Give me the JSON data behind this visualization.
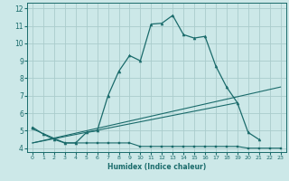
{
  "title": "",
  "xlabel": "Humidex (Indice chaleur)",
  "bg_color": "#cce8e8",
  "grid_color": "#aacccc",
  "line_color": "#1a6b6b",
  "xlim": [
    -0.5,
    23.5
  ],
  "ylim": [
    3.8,
    12.3
  ],
  "yticks": [
    4,
    5,
    6,
    7,
    8,
    9,
    10,
    11,
    12
  ],
  "xticks": [
    0,
    1,
    2,
    3,
    4,
    5,
    6,
    7,
    8,
    9,
    10,
    11,
    12,
    13,
    14,
    15,
    16,
    17,
    18,
    19,
    20,
    21,
    22,
    23
  ],
  "series0_x": [
    0,
    1,
    2,
    3,
    4,
    5,
    6,
    7,
    8,
    9,
    10,
    11,
    12,
    13,
    14,
    15,
    16,
    17,
    18,
    19,
    20,
    21
  ],
  "series0_y": [
    5.2,
    4.8,
    4.5,
    4.3,
    4.3,
    4.9,
    5.0,
    7.0,
    8.4,
    9.3,
    9.0,
    11.1,
    11.15,
    11.6,
    10.5,
    10.3,
    10.4,
    8.7,
    7.5,
    6.6,
    4.9,
    4.5
  ],
  "series1_x": [
    0,
    3,
    4,
    5,
    6,
    7,
    8,
    9,
    10,
    11,
    12,
    13,
    14,
    15,
    16,
    17,
    18,
    19,
    20,
    21,
    22,
    23
  ],
  "series1_y": [
    5.1,
    4.3,
    4.3,
    4.3,
    4.3,
    4.3,
    4.3,
    4.3,
    4.1,
    4.1,
    4.1,
    4.1,
    4.1,
    4.1,
    4.1,
    4.1,
    4.1,
    4.1,
    4.0,
    4.0,
    4.0,
    4.0
  ],
  "series2_x": [
    0,
    23
  ],
  "series2_y": [
    4.3,
    7.5
  ],
  "series3_x": [
    0,
    19
  ],
  "series3_y": [
    4.3,
    6.6
  ]
}
